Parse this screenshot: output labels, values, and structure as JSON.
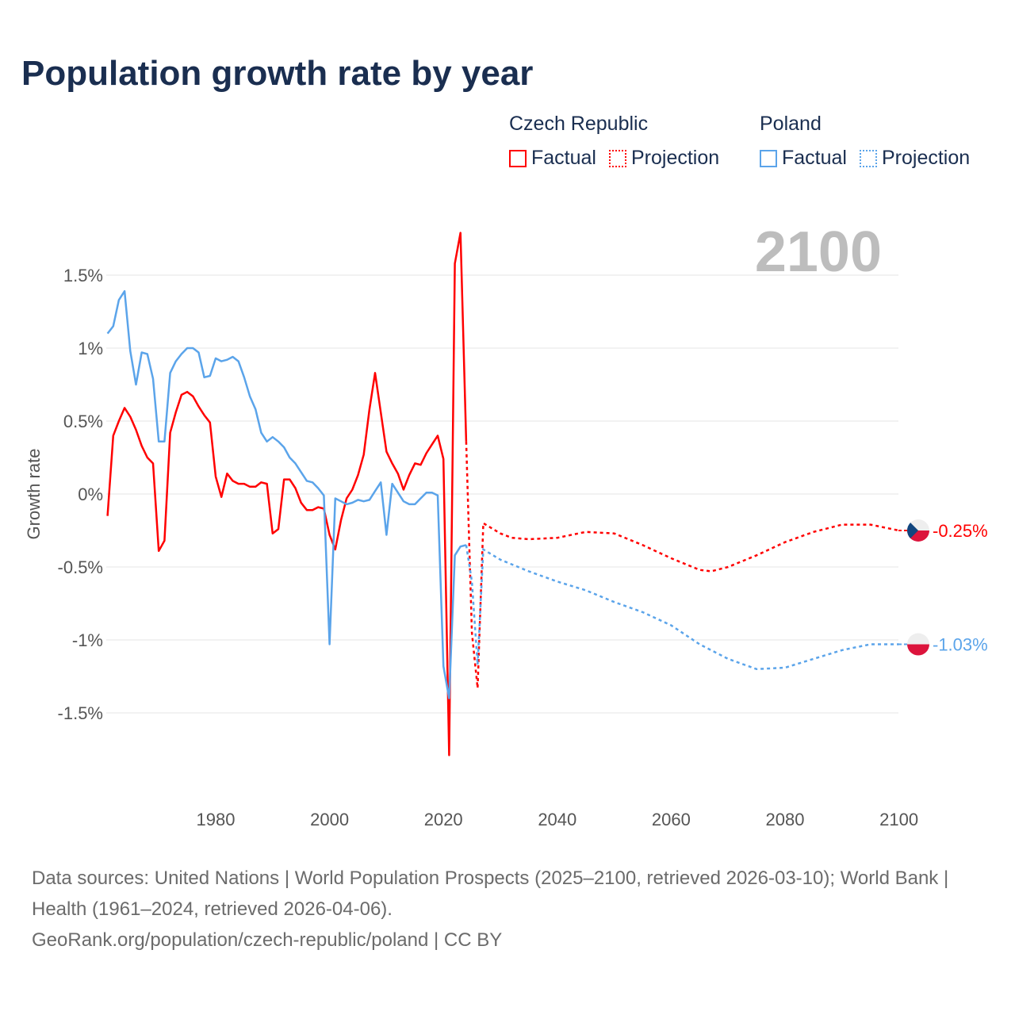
{
  "title": "Population growth rate by year",
  "legend": {
    "groups": [
      {
        "name": "Czech Republic",
        "color": "#ff0000",
        "factual": "Factual",
        "projection": "Projection"
      },
      {
        "name": "Poland",
        "color": "#5ba4ea",
        "factual": "Factual",
        "projection": "Projection"
      }
    ]
  },
  "year_label": "2100",
  "footer": {
    "sources": "Data sources: United Nations | World Population Prospects (2025–2100, retrieved 2026-03-10); World Bank | Health (1961–2024, retrieved 2026-04-06).",
    "credit": "GeoRank.org/population/czech-republic/poland | CC BY"
  },
  "chart_data": {
    "type": "line",
    "title": "Population growth rate by year",
    "xlabel": "",
    "ylabel": "Growth rate",
    "xlim": [
      1961,
      2100
    ],
    "ylim": [
      -2.0,
      1.9
    ],
    "xticks": [
      1980,
      2000,
      2020,
      2040,
      2060,
      2080,
      2100
    ],
    "xtick_labels": [
      "1980",
      "2000",
      "2020",
      "2040",
      "2060",
      "2080",
      "2100"
    ],
    "yticks": [
      1.5,
      1,
      0.5,
      0,
      -0.5,
      -1,
      -1.5
    ],
    "ytick_labels": [
      "1.5%",
      "1%",
      "0.5%",
      "0%",
      "-0.5%",
      "-1%",
      "-1.5%"
    ],
    "grid": true,
    "legend_position": "top-right",
    "series": [
      {
        "name": "Czech Republic",
        "color": "#ff0000",
        "end_label": "-0.25%",
        "factual_x": [
          1961,
          1962,
          1963,
          1964,
          1965,
          1966,
          1967,
          1968,
          1969,
          1970,
          1971,
          1972,
          1973,
          1974,
          1975,
          1976,
          1977,
          1978,
          1979,
          1980,
          1981,
          1982,
          1983,
          1984,
          1985,
          1986,
          1987,
          1988,
          1989,
          1990,
          1991,
          1992,
          1993,
          1994,
          1995,
          1996,
          1997,
          1998,
          1999,
          2000,
          2001,
          2002,
          2003,
          2004,
          2005,
          2006,
          2007,
          2008,
          2009,
          2010,
          2011,
          2012,
          2013,
          2014,
          2015,
          2016,
          2017,
          2018,
          2019,
          2020,
          2021,
          2022,
          2023,
          2024
        ],
        "factual_y": [
          -0.15,
          0.4,
          0.5,
          0.59,
          0.53,
          0.44,
          0.33,
          0.25,
          0.21,
          -0.39,
          -0.32,
          0.42,
          0.56,
          0.68,
          0.7,
          0.67,
          0.6,
          0.54,
          0.49,
          0.12,
          -0.02,
          0.14,
          0.09,
          0.07,
          0.07,
          0.05,
          0.05,
          0.08,
          0.07,
          -0.27,
          -0.24,
          0.1,
          0.1,
          0.04,
          -0.06,
          -0.11,
          -0.11,
          -0.09,
          -0.1,
          -0.28,
          -0.38,
          -0.18,
          -0.03,
          0.03,
          0.13,
          0.27,
          0.58,
          0.83,
          0.56,
          0.29,
          0.21,
          0.14,
          0.03,
          0.13,
          0.21,
          0.2,
          0.28,
          0.34,
          0.4,
          0.24,
          -1.79,
          1.58,
          1.79,
          0.36
        ],
        "projection_x": [
          2024,
          2025,
          2026,
          2027,
          2030,
          2032,
          2035,
          2040,
          2045,
          2050,
          2055,
          2060,
          2065,
          2067,
          2070,
          2075,
          2080,
          2085,
          2090,
          2095,
          2100
        ],
        "projection_y": [
          0.36,
          -0.95,
          -1.33,
          -0.2,
          -0.27,
          -0.3,
          -0.31,
          -0.3,
          -0.26,
          -0.27,
          -0.35,
          -0.44,
          -0.52,
          -0.53,
          -0.5,
          -0.42,
          -0.33,
          -0.26,
          -0.21,
          -0.21,
          -0.25
        ]
      },
      {
        "name": "Poland",
        "color": "#5ba4ea",
        "end_label": "-1.03%",
        "factual_x": [
          1961,
          1962,
          1963,
          1964,
          1965,
          1966,
          1967,
          1968,
          1969,
          1970,
          1971,
          1972,
          1973,
          1974,
          1975,
          1976,
          1977,
          1978,
          1979,
          1980,
          1981,
          1982,
          1983,
          1984,
          1985,
          1986,
          1987,
          1988,
          1989,
          1990,
          1991,
          1992,
          1993,
          1994,
          1995,
          1996,
          1997,
          1998,
          1999,
          2000,
          2001,
          2002,
          2003,
          2004,
          2005,
          2006,
          2007,
          2008,
          2009,
          2010,
          2011,
          2012,
          2013,
          2014,
          2015,
          2016,
          2017,
          2018,
          2019,
          2020,
          2021,
          2022,
          2023,
          2024
        ],
        "factual_y": [
          1.1,
          1.15,
          1.33,
          1.39,
          0.98,
          0.75,
          0.97,
          0.96,
          0.79,
          0.36,
          0.36,
          0.83,
          0.91,
          0.96,
          1.0,
          1.0,
          0.97,
          0.8,
          0.81,
          0.93,
          0.91,
          0.92,
          0.94,
          0.91,
          0.8,
          0.67,
          0.58,
          0.42,
          0.36,
          0.39,
          0.36,
          0.32,
          0.25,
          0.21,
          0.15,
          0.09,
          0.08,
          0.04,
          -0.01,
          -1.03,
          -0.03,
          -0.05,
          -0.07,
          -0.06,
          -0.04,
          -0.05,
          -0.04,
          0.02,
          0.08,
          -0.28,
          0.07,
          0.01,
          -0.05,
          -0.07,
          -0.07,
          -0.03,
          0.01,
          0.01,
          -0.01,
          -1.18,
          -1.4,
          -0.42,
          -0.36,
          -0.35
        ],
        "projection_x": [
          2024,
          2025,
          2026,
          2027,
          2030,
          2035,
          2040,
          2045,
          2050,
          2055,
          2060,
          2065,
          2070,
          2075,
          2080,
          2085,
          2090,
          2095,
          2100
        ],
        "projection_y": [
          -0.35,
          -0.6,
          -1.17,
          -0.38,
          -0.45,
          -0.53,
          -0.6,
          -0.66,
          -0.74,
          -0.81,
          -0.9,
          -1.03,
          -1.13,
          -1.2,
          -1.19,
          -1.13,
          -1.07,
          -1.03,
          -1.03
        ]
      }
    ]
  }
}
